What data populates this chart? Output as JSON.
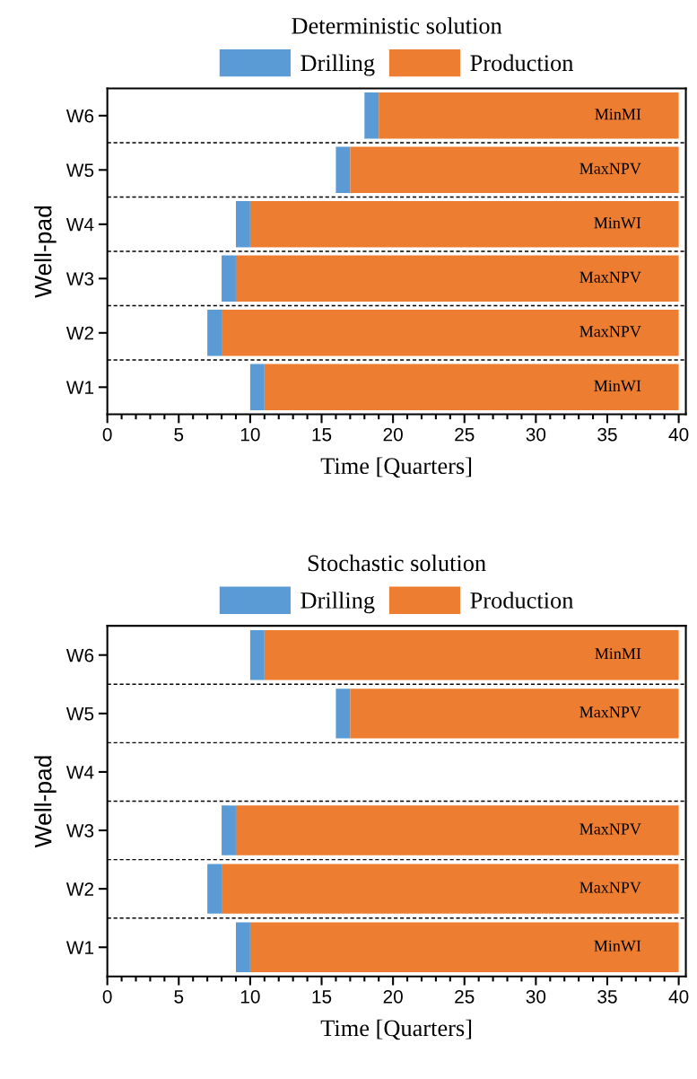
{
  "chart_data": [
    {
      "type": "bar",
      "title": "Deterministic solution",
      "xlabel": "Time [Quarters]",
      "ylabel": "Well-pad",
      "orientation": "horizontal",
      "legend": "top",
      "categories": [
        "W6",
        "W5",
        "W4",
        "W3",
        "W2",
        "W1"
      ],
      "xlim": [
        0,
        40.5
      ],
      "xticks": [
        0,
        {
          "value": 1,
          "label": null
        },
        {
          "value": 2,
          "label": null
        },
        {
          "value": 3,
          "label": null
        },
        {
          "value": 4,
          "label": null
        },
        5,
        {
          "value": 6,
          "label": null
        },
        {
          "value": 7,
          "label": null
        },
        {
          "value": 8,
          "label": null
        },
        {
          "value": 9,
          "label": null
        },
        10,
        {
          "value": 11,
          "label": null
        },
        {
          "value": 12,
          "label": null
        },
        {
          "value": 13,
          "label": null
        },
        {
          "value": 14,
          "label": null
        },
        15,
        {
          "value": 16,
          "label": null
        },
        {
          "value": 17,
          "label": null
        },
        {
          "value": 18,
          "label": null
        },
        {
          "value": 19,
          "label": null
        },
        20,
        {
          "value": 21,
          "label": null
        },
        {
          "value": 22,
          "label": null
        },
        {
          "value": 23,
          "label": null
        },
        {
          "value": 24,
          "label": null
        },
        25,
        {
          "value": 26,
          "label": null
        },
        {
          "value": 27,
          "label": null
        },
        {
          "value": 28,
          "label": null
        },
        {
          "value": 29,
          "label": null
        },
        30,
        {
          "value": 31,
          "label": null
        },
        {
          "value": 32,
          "label": null
        },
        {
          "value": 33,
          "label": null
        },
        {
          "value": 34,
          "label": null
        },
        35,
        {
          "value": 36,
          "label": null
        },
        {
          "value": 37,
          "label": null
        },
        {
          "value": 38,
          "label": null
        },
        {
          "value": 39,
          "label": null
        },
        40
      ],
      "series": [
        {
          "name": "Drilling",
          "color": "#5b9bd5",
          "base": [
            18,
            16,
            9,
            8,
            7,
            10
          ],
          "values": [
            1,
            1,
            1,
            1,
            1,
            1
          ]
        },
        {
          "name": "Production",
          "color": "#ed7d31",
          "base": [
            19,
            17,
            10,
            9,
            8,
            11
          ],
          "values": [
            21,
            23,
            30,
            31,
            32,
            29
          ],
          "value_labels": [
            "MinMI",
            "MaxNPV",
            "MinWI",
            "MaxNPV",
            "MaxNPV",
            "MinWI"
          ]
        }
      ]
    },
    {
      "type": "bar",
      "title": "Stochastic solution",
      "xlabel": "Time [Quarters]",
      "ylabel": "Well-pad",
      "orientation": "horizontal",
      "legend": "top",
      "categories": [
        "W6",
        "W5",
        "W4",
        "W3",
        "W2",
        "W1"
      ],
      "xlim": [
        0,
        40.5
      ],
      "xticks": [
        0,
        {
          "value": 1,
          "label": null
        },
        {
          "value": 2,
          "label": null
        },
        {
          "value": 3,
          "label": null
        },
        {
          "value": 4,
          "label": null
        },
        5,
        {
          "value": 6,
          "label": null
        },
        {
          "value": 7,
          "label": null
        },
        {
          "value": 8,
          "label": null
        },
        {
          "value": 9,
          "label": null
        },
        10,
        {
          "value": 11,
          "label": null
        },
        {
          "value": 12,
          "label": null
        },
        {
          "value": 13,
          "label": null
        },
        {
          "value": 14,
          "label": null
        },
        15,
        {
          "value": 16,
          "label": null
        },
        {
          "value": 17,
          "label": null
        },
        {
          "value": 18,
          "label": null
        },
        {
          "value": 19,
          "label": null
        },
        20,
        {
          "value": 21,
          "label": null
        },
        {
          "value": 22,
          "label": null
        },
        {
          "value": 23,
          "label": null
        },
        {
          "value": 24,
          "label": null
        },
        25,
        {
          "value": 26,
          "label": null
        },
        {
          "value": 27,
          "label": null
        },
        {
          "value": 28,
          "label": null
        },
        {
          "value": 29,
          "label": null
        },
        30,
        {
          "value": 31,
          "label": null
        },
        {
          "value": 32,
          "label": null
        },
        {
          "value": 33,
          "label": null
        },
        {
          "value": 34,
          "label": null
        },
        35,
        {
          "value": 36,
          "label": null
        },
        {
          "value": 37,
          "label": null
        },
        {
          "value": 38,
          "label": null
        },
        {
          "value": 39,
          "label": null
        },
        40
      ],
      "series": [
        {
          "name": "Drilling",
          "color": "#5b9bd5",
          "base": [
            10,
            16,
            null,
            8,
            7,
            9
          ],
          "values": [
            1,
            1,
            null,
            1,
            1,
            1
          ]
        },
        {
          "name": "Production",
          "color": "#ed7d31",
          "base": [
            11,
            17,
            null,
            9,
            8,
            10
          ],
          "values": [
            29,
            23,
            null,
            31,
            32,
            30
          ],
          "value_labels": [
            "MinMI",
            "MaxNPV",
            null,
            "MaxNPV",
            "MaxNPV",
            "MinWI"
          ]
        }
      ]
    }
  ]
}
